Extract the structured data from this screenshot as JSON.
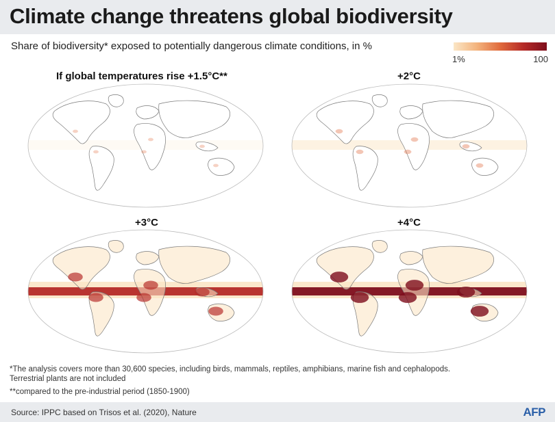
{
  "header": {
    "title": "Climate change threatens global biodiversity",
    "subtitle": "Share of biodiversity* exposed to potentially dangerous climate conditions, in %"
  },
  "legend": {
    "min_label": "1%",
    "max_label": "100",
    "colors": [
      "#fbe6c6",
      "#f3b37d",
      "#e06a3c",
      "#b52a27",
      "#7e0e1c"
    ]
  },
  "panels": [
    {
      "title": "If global temperatures rise  +1.5°C**",
      "intensity": 0.08
    },
    {
      "title": "+2°C",
      "intensity": 0.2
    },
    {
      "title": "+3°C",
      "intensity": 0.65
    },
    {
      "title": "+4°C",
      "intensity": 0.85
    }
  ],
  "chart_data": {
    "type": "heatmap",
    "title": "Climate change threatens global biodiversity",
    "subtitle": "Share of biodiversity* exposed to potentially dangerous climate conditions, in %",
    "colorbar": {
      "min": 1,
      "max": 100,
      "min_label": "1%",
      "max_label": "100"
    },
    "scenarios": [
      "+1.5°C",
      "+2°C",
      "+3°C",
      "+4°C"
    ]
  },
  "footnotes": {
    "note1_line1": "*The analysis covers more than 30,600 species, including birds, mammals, reptiles, amphibians, marine fish and cephalopods.",
    "note1_line2": "Terrestrial plants are not included",
    "note2": "**compared to the pre-industrial period (1850-1900)"
  },
  "source": "Source:  IPPC based on Trisos et al. (2020), Nature",
  "logo": "AFP"
}
